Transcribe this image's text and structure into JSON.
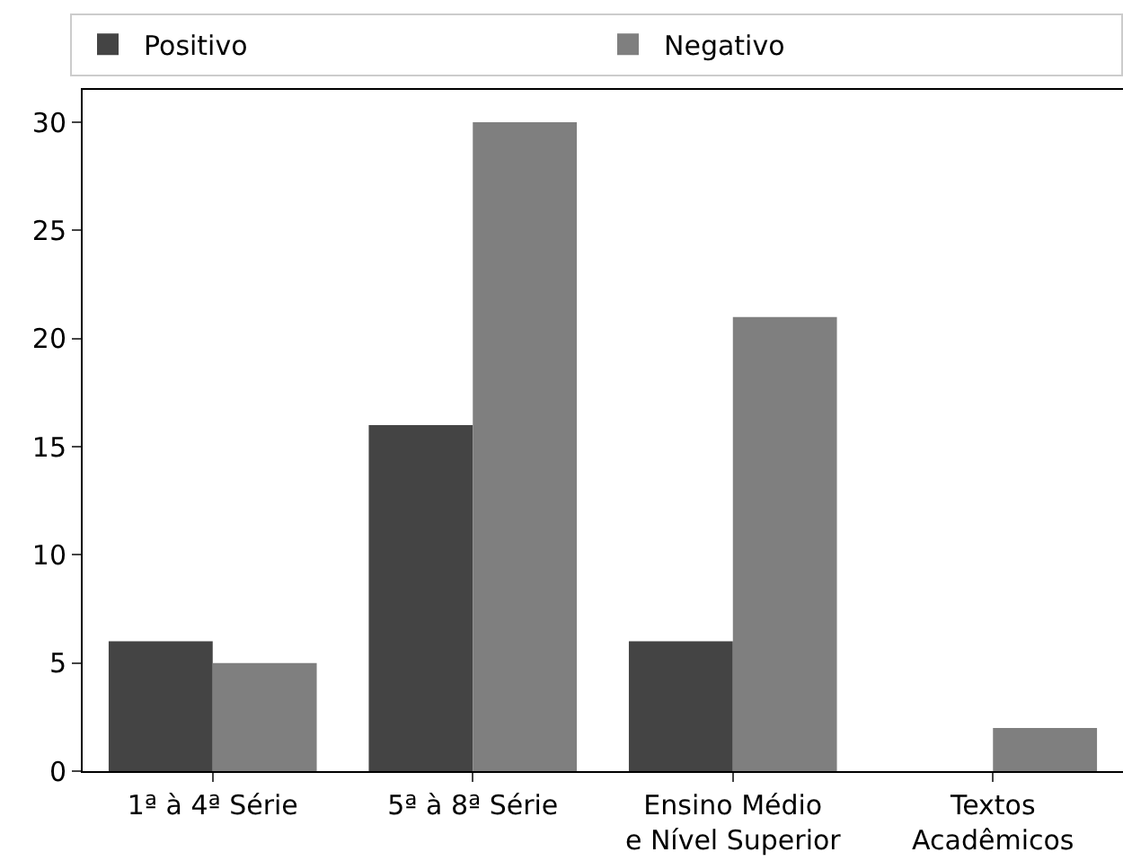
{
  "chart_data": {
    "type": "bar",
    "categories": [
      "1ª à 4ª Série",
      "5ª à 8ª Série",
      "Ensino Médio\ne Nível Superior",
      "Textos\nAcadêmicos"
    ],
    "series": [
      {
        "name": "Positivo",
        "color": "#444444",
        "values": [
          6,
          16,
          6,
          0
        ]
      },
      {
        "name": "Negativo",
        "color": "#7f7f7f",
        "values": [
          5,
          30,
          21,
          2
        ]
      }
    ],
    "ylim": [
      0,
      31.5
    ],
    "yticks": [
      0,
      5,
      10,
      15,
      20,
      25,
      30
    ],
    "grid": false,
    "legend": "top"
  }
}
